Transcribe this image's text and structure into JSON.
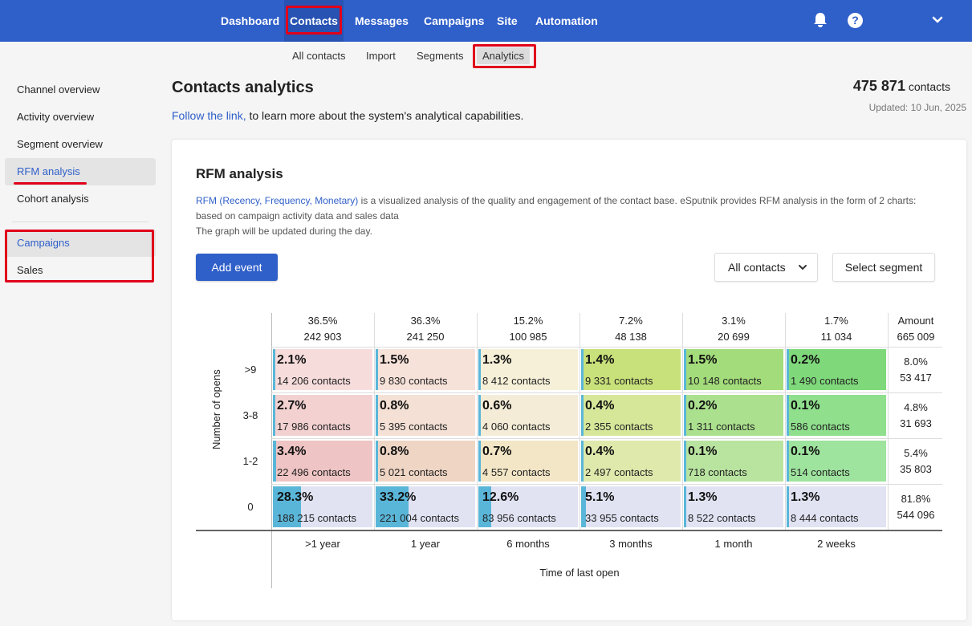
{
  "topnav": {
    "items": [
      "Dashboard",
      "Contacts",
      "Messages",
      "Campaigns",
      "Site",
      "Automation"
    ],
    "help_icon": "?"
  },
  "subnav": {
    "items": [
      "All contacts",
      "Import",
      "Segments",
      "Analytics"
    ]
  },
  "sidebar": {
    "group1": [
      "Channel overview",
      "Activity overview",
      "Segment overview",
      "RFM analysis",
      "Cohort analysis"
    ],
    "group2": [
      "Campaigns",
      "Sales"
    ]
  },
  "page": {
    "title": "Contacts analytics",
    "follow_link": "Follow the link,",
    "follow_text": " to learn more about the system's analytical capabilities.",
    "count_value": "475 871",
    "count_unit": "contacts",
    "updated": "Updated: 10 Jun, 2025"
  },
  "card": {
    "title": "RFM analysis",
    "desc_link": "RFM (Recency, Frequency, Monetary)",
    "desc_text": " is a visualized analysis of the quality and engagement of the contact base. eSputnik provides RFM analysis in the form of 2 charts: based on campaign activity data and sales data",
    "desc_line2": "The graph will be updated during the day.",
    "add_event": "Add event",
    "select_value": "All contacts",
    "select_segment": "Select segment"
  },
  "chart_data": {
    "type": "heatmap",
    "xlabel": "Time of last open",
    "ylabel": "Number of opens",
    "columns": [
      {
        "label": ">1 year",
        "pct": "36.5%",
        "count": "242 903"
      },
      {
        "label": "1 year",
        "pct": "36.3%",
        "count": "241 250"
      },
      {
        "label": "6 months",
        "pct": "15.2%",
        "count": "100 985"
      },
      {
        "label": "3 months",
        "pct": "7.2%",
        "count": "48 138"
      },
      {
        "label": "1 month",
        "pct": "3.1%",
        "count": "20 699"
      },
      {
        "label": "2 weeks",
        "pct": "1.7%",
        "count": "11 034"
      }
    ],
    "amount_header": {
      "label": "Amount",
      "value": "665 009"
    },
    "rows": [
      {
        "label": ">9",
        "amount_pct": "8.0%",
        "amount_count": "53 417",
        "cells": [
          {
            "pct": "2.1%",
            "contacts": "14 206 contacts",
            "color": "#f7dcdc",
            "fill": 0.021
          },
          {
            "pct": "1.5%",
            "contacts": "9 830 contacts",
            "color": "#f7e2da",
            "fill": 0.015
          },
          {
            "pct": "1.3%",
            "contacts": "8 412 contacts",
            "color": "#f6f0d8",
            "fill": 0.013
          },
          {
            "pct": "1.4%",
            "contacts": "9 331 contacts",
            "color": "#c9e17a",
            "fill": 0.014
          },
          {
            "pct": "1.5%",
            "contacts": "10 148 contacts",
            "color": "#a3dc7a",
            "fill": 0.015
          },
          {
            "pct": "0.2%",
            "contacts": "1 490 contacts",
            "color": "#7fd97b",
            "fill": 0.002
          }
        ]
      },
      {
        "label": "3-8",
        "amount_pct": "4.8%",
        "amount_count": "31 693",
        "cells": [
          {
            "pct": "2.7%",
            "contacts": "17 986 contacts",
            "color": "#f3d1d1",
            "fill": 0.027
          },
          {
            "pct": "0.8%",
            "contacts": "5 395 contacts",
            "color": "#f4e0d4",
            "fill": 0.008
          },
          {
            "pct": "0.6%",
            "contacts": "4 060 contacts",
            "color": "#f4ecd6",
            "fill": 0.006
          },
          {
            "pct": "0.4%",
            "contacts": "2 355 contacts",
            "color": "#d6e79a",
            "fill": 0.004
          },
          {
            "pct": "0.2%",
            "contacts": "1 311 contacts",
            "color": "#abe18e",
            "fill": 0.002
          },
          {
            "pct": "0.1%",
            "contacts": "586 contacts",
            "color": "#8fdf8d",
            "fill": 0.001
          }
        ]
      },
      {
        "label": "1-2",
        "amount_pct": "5.4%",
        "amount_count": "35 803",
        "cells": [
          {
            "pct": "3.4%",
            "contacts": "22 496 contacts",
            "color": "#efc4c4",
            "fill": 0.034
          },
          {
            "pct": "0.8%",
            "contacts": "5 021 contacts",
            "color": "#efd5c4",
            "fill": 0.008
          },
          {
            "pct": "0.7%",
            "contacts": "4 557 contacts",
            "color": "#f2e6c6",
            "fill": 0.007
          },
          {
            "pct": "0.4%",
            "contacts": "2 497 contacts",
            "color": "#dfe9ac",
            "fill": 0.004
          },
          {
            "pct": "0.1%",
            "contacts": "718 contacts",
            "color": "#b9e4a0",
            "fill": 0.001
          },
          {
            "pct": "0.1%",
            "contacts": "514 contacts",
            "color": "#9ee39e",
            "fill": 0.001
          }
        ]
      },
      {
        "label": "0",
        "amount_pct": "81.8%",
        "amount_count": "544 096",
        "cells": [
          {
            "pct": "28.3%",
            "contacts": "188 215 contacts",
            "color": "#e1e3f3",
            "fill": 0.283
          },
          {
            "pct": "33.2%",
            "contacts": "221 004 contacts",
            "color": "#e1e3f3",
            "fill": 0.332
          },
          {
            "pct": "12.6%",
            "contacts": "83 956 contacts",
            "color": "#e1e3f3",
            "fill": 0.126
          },
          {
            "pct": "5.1%",
            "contacts": "33 955 contacts",
            "color": "#e1e3f3",
            "fill": 0.051
          },
          {
            "pct": "1.3%",
            "contacts": "8 522 contacts",
            "color": "#e1e3f3",
            "fill": 0.013
          },
          {
            "pct": "1.3%",
            "contacts": "8 444 contacts",
            "color": "#e1e3f3",
            "fill": 0.013
          }
        ]
      }
    ]
  }
}
